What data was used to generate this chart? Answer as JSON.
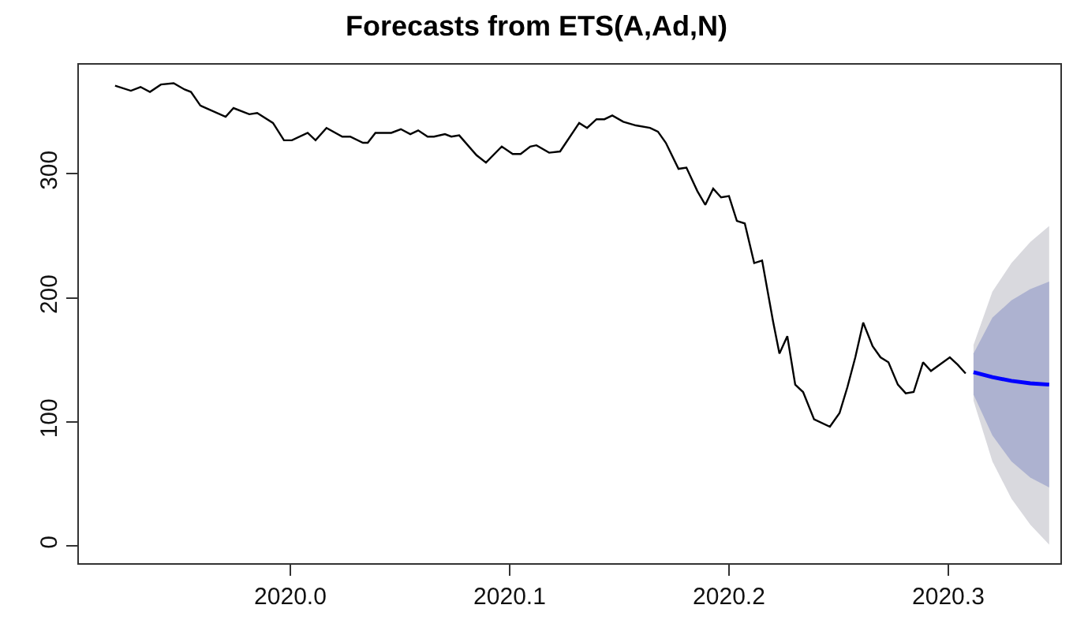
{
  "chart_data": {
    "type": "line",
    "title": "Forecasts from ETS(A,Ad,N)",
    "xlim": [
      2019.9036,
      2020.3511
    ],
    "ylim": [
      -14,
      388
    ],
    "xticks": [
      {
        "value": 2020.0,
        "label": "2020.0"
      },
      2020.1,
      2020.2,
      2020.3
    ],
    "yticks": [
      0,
      100,
      200,
      300
    ],
    "line_style": "solid",
    "marker": "none",
    "series": [
      {
        "color": "#000000",
        "x": [
          2019.9201,
          2019.9273,
          2019.9317,
          2019.936,
          2019.941,
          2019.9468,
          2019.9518,
          2019.9547,
          2019.959,
          2019.9705,
          2019.9741,
          2019.9813,
          2019.9849,
          2019.9921,
          2019.9971,
          2020.0007,
          2020.0079,
          2020.0115,
          2020.0165,
          2020.0237,
          2020.0273,
          2020.0331,
          2020.0353,
          2020.0388,
          2020.046,
          2020.0504,
          2020.0547,
          2020.0583,
          2020.0626,
          2020.0655,
          2020.0705,
          2020.0734,
          2020.077,
          2020.0849,
          2020.0892,
          2020.0964,
          2020.1014,
          2020.105,
          2020.1094,
          2020.1122,
          2020.118,
          2020.123,
          2020.1317,
          2020.1353,
          2020.1396,
          2020.1432,
          2020.1468,
          2020.1518,
          2020.1576,
          2020.164,
          2020.1676,
          2020.1712,
          2020.177,
          2020.1806,
          2020.1856,
          2020.1892,
          2020.1928,
          2020.1964,
          2020.2,
          2020.2036,
          2020.2072,
          2020.2115,
          2020.2151,
          2020.2201,
          2020.223,
          2020.2266,
          2020.2302,
          2020.2338,
          2020.2388,
          2020.246,
          2020.2504,
          2020.254,
          2020.2576,
          2020.2612,
          2020.2655,
          2020.2691,
          2020.2727,
          2020.277,
          2020.2806,
          2020.2842,
          2020.2885,
          2020.2921,
          2020.3007,
          2020.3043,
          2020.3079
        ],
        "values": [
          371,
          367,
          370,
          366,
          372,
          373,
          368,
          366,
          355,
          346,
          353,
          348,
          349,
          341,
          327,
          327,
          333,
          327,
          337,
          330,
          330,
          325,
          325,
          333,
          333,
          336,
          332,
          335,
          330,
          330,
          332,
          330,
          331,
          315,
          309,
          322,
          316,
          316,
          322,
          323,
          317,
          318,
          341,
          337,
          344,
          344,
          347,
          342,
          339,
          337,
          334,
          325,
          304,
          305,
          286,
          275,
          288,
          281,
          282,
          262,
          260,
          228,
          230,
          181,
          155,
          169,
          130,
          124,
          102,
          96,
          107,
          128,
          152,
          180,
          161,
          152,
          148,
          130,
          123,
          124,
          148,
          141,
          152,
          146,
          139
        ]
      },
      {
        "color": "#d9d9de",
        "x": [
          2020.3115,
          2020.3201,
          2020.3288,
          2020.3374,
          2020.346
        ],
        "values": [
          null,
          null,
          null,
          null,
          null
        ],
        "lower": [
          117,
          68,
          38,
          17,
          1
        ],
        "upper": [
          162,
          205,
          228,
          245,
          258
        ]
      },
      {
        "color": "#adb2d0",
        "x": [
          2020.3115,
          2020.3201,
          2020.3288,
          2020.3374,
          2020.346
        ],
        "values": [
          null,
          null,
          null,
          null,
          null
        ],
        "lower": [
          122,
          89,
          68,
          55,
          47
        ],
        "upper": [
          155,
          184,
          198,
          207,
          213
        ]
      },
      {
        "color": "#0000ff",
        "x": [
          2020.3115,
          2020.3201,
          2020.3288,
          2020.3374,
          2020.346
        ],
        "values": [
          140,
          136,
          133,
          131,
          130
        ]
      }
    ]
  }
}
